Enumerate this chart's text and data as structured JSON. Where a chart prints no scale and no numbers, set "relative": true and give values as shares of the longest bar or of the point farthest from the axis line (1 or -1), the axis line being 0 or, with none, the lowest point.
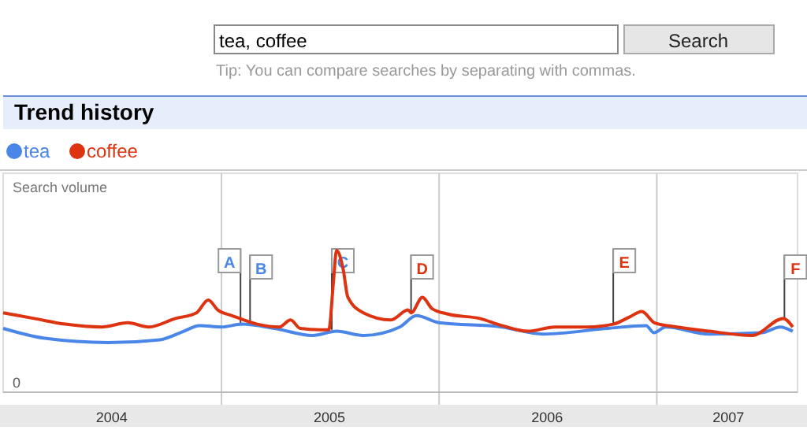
{
  "chart_data": {
    "type": "line",
    "title": "Trend history",
    "ylabel": "Search volume",
    "relative": true,
    "annotations": [
      "tea, coffee",
      "Search",
      "Tip: You can compare searches by separating with commas.",
      "0",
      {
        "text": "A",
        "x": "2005-02-02",
        "y": 0.48
      },
      {
        "text": "B",
        "x": "2005-02-18",
        "y": 0.5
      },
      {
        "text": "C",
        "x": "2005-07-05",
        "y": 0.44
      },
      {
        "text": "D",
        "x": "2005-11-15",
        "y": 0.56
      },
      {
        "text": "E",
        "x": "2006-10-20",
        "y": 0.48
      },
      {
        "text": "F",
        "x": "2007-08-03",
        "y": 0.52
      }
    ],
    "xlim": [
      "2004-01-01",
      "2007-08-25"
    ],
    "xticks": [
      {
        "value": "2004-07-01",
        "label": "2004"
      },
      {
        "value": "2005-01-01",
        "label": null
      },
      {
        "value": "2005-07-01",
        "label": "2005"
      },
      {
        "value": "2006-01-01",
        "label": null
      },
      {
        "value": "2006-07-01",
        "label": "2006"
      },
      {
        "value": "2007-01-01",
        "label": null
      },
      {
        "value": "2007-05-01",
        "label": "2007"
      }
    ],
    "grid": "x",
    "legend": "top left",
    "marker": "none",
    "line_style": "solid",
    "series": [
      {
        "name": "tea",
        "color": "#4a86e8",
        "x": [
          "2004-01-01",
          "2004-03-11",
          "2004-06-25",
          "2004-09-20",
          "2004-10-30",
          "2004-11-25",
          "2005-01-01",
          "2005-02-05",
          "2005-03-31",
          "2005-06-03",
          "2005-07-13",
          "2005-08-27",
          "2005-10-27",
          "2005-11-24",
          "2006-01-01",
          "2006-04-16",
          "2006-06-25",
          "2006-10-10",
          "2006-12-14",
          "2006-12-27",
          "2007-01-16",
          "2007-03-30",
          "2007-06-26",
          "2007-07-27",
          "2007-08-17"
        ],
        "values": [
          0.45,
          0.38,
          0.35,
          0.37,
          0.43,
          0.47,
          0.46,
          0.48,
          0.45,
          0.4,
          0.43,
          0.4,
          0.46,
          0.54,
          0.49,
          0.46,
          0.41,
          0.45,
          0.47,
          0.42,
          0.46,
          0.41,
          0.42,
          0.46,
          0.43
        ]
      },
      {
        "name": "coffee",
        "color": "#dd3311",
        "x": [
          "2004-01-01",
          "2004-02-22",
          "2004-04-14",
          "2004-06-14",
          "2004-07-28",
          "2004-09-01",
          "2004-10-16",
          "2004-11-20",
          "2004-12-10",
          "2004-12-26",
          "2005-01-19",
          "2005-03-02",
          "2005-04-08",
          "2005-04-27",
          "2005-05-13",
          "2005-06-16",
          "2005-06-30",
          "2005-07-08",
          "2005-07-13",
          "2005-07-24",
          "2005-08-01",
          "2005-08-27",
          "2005-10-12",
          "2005-11-10",
          "2005-11-15",
          "2005-12-04",
          "2005-12-20",
          "2006-01-17",
          "2006-03-10",
          "2006-04-16",
          "2006-05-30",
          "2006-07-14",
          "2006-09-05",
          "2006-10-20",
          "2006-11-16",
          "2006-12-07",
          "2006-12-28",
          "2007-02-04",
          "2007-03-30",
          "2007-06-10",
          "2007-08-01",
          "2007-08-17"
        ],
        "values": [
          0.56,
          0.52,
          0.48,
          0.46,
          0.49,
          0.46,
          0.52,
          0.56,
          0.65,
          0.58,
          0.54,
          0.48,
          0.46,
          0.51,
          0.45,
          0.44,
          0.44,
          0.79,
          1,
          0.87,
          0.67,
          0.56,
          0.51,
          0.58,
          0.56,
          0.67,
          0.59,
          0.55,
          0.52,
          0.47,
          0.43,
          0.46,
          0.46,
          0.48,
          0.53,
          0.57,
          0.49,
          0.46,
          0.43,
          0.4,
          0.52,
          0.46
        ]
      }
    ]
  }
}
